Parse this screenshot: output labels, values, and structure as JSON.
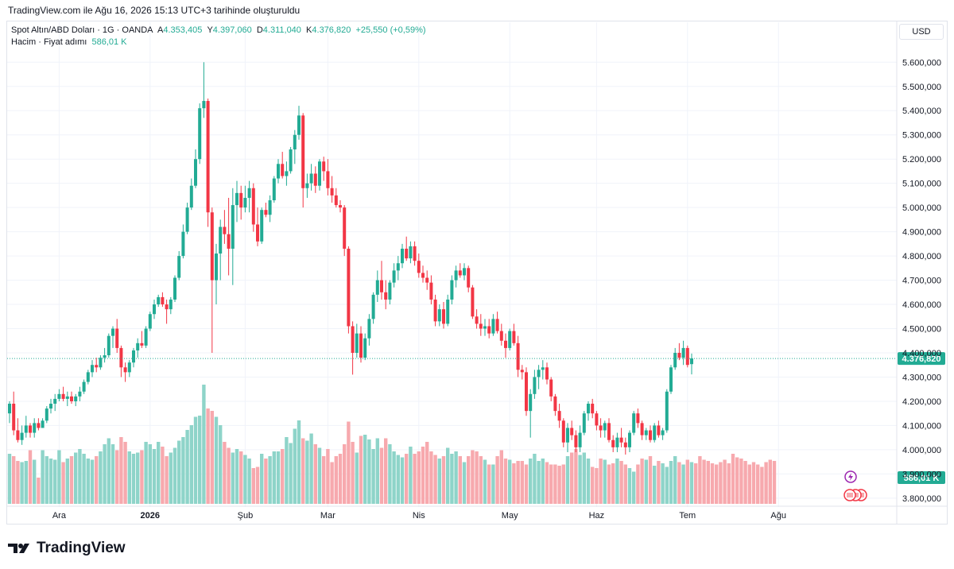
{
  "header": {
    "caption": "TradingView.com ile Ağu 16, 2026 15:13 UTC+3 tarihinde oluşturuldu",
    "symbol": "Spot Altın/ABD Doları · 1G · OANDA",
    "open_label": "A",
    "open": "4.353,405",
    "high_label": "Y",
    "high": "4.397,060",
    "low_label": "D",
    "low": "4.311,040",
    "close_label": "K",
    "close": "4.376,820",
    "change": "+25,550 (+0,59%)",
    "volume_label": "Hacim · Fiyat adımı",
    "volume_value": "586,01 K"
  },
  "currency": "USD",
  "footer_brand": "TradingView",
  "colors": {
    "up": "#22ab94",
    "down": "#f23645",
    "up_vol": "#8ed4c9",
    "down_vol": "#f7a9ae"
  },
  "chart_data": {
    "type": "candlestick",
    "series_name": "Spot Altın/ABD Doları",
    "ylim": [
      3770000,
      5660000
    ],
    "y_ticks": [
      {
        "value": 5600000,
        "label": "5.600,000"
      },
      {
        "value": 5500000,
        "label": "5.500,000"
      },
      {
        "value": 5400000,
        "label": "5.400,000"
      },
      {
        "value": 5300000,
        "label": "5.300,000"
      },
      {
        "value": 5200000,
        "label": "5.200,000"
      },
      {
        "value": 5100000,
        "label": "5.100,000"
      },
      {
        "value": 5000000,
        "label": "5.000,000"
      },
      {
        "value": 4900000,
        "label": "4.900,000"
      },
      {
        "value": 4800000,
        "label": "4.800,000"
      },
      {
        "value": 4700000,
        "label": "4.700,000"
      },
      {
        "value": 4600000,
        "label": "4.600,000"
      },
      {
        "value": 4500000,
        "label": "4.500,000"
      },
      {
        "value": 4400000,
        "label": "4.400,000"
      },
      {
        "value": 4300000,
        "label": "4.300,000"
      },
      {
        "value": 4200000,
        "label": "4.200,000"
      },
      {
        "value": 4100000,
        "label": "4.100,000"
      },
      {
        "value": 4000000,
        "label": "4.000,000"
      },
      {
        "value": 3900000,
        "label": "3.900,000"
      },
      {
        "value": 3800000,
        "label": "3.800,000"
      }
    ],
    "x_ticks": [
      {
        "index": 12,
        "label": "Ara"
      },
      {
        "index": 34,
        "label": "2026"
      },
      {
        "index": 57,
        "label": "Şub"
      },
      {
        "index": 77,
        "label": "Mar"
      },
      {
        "index": 99,
        "label": "Nis"
      },
      {
        "index": 121,
        "label": "May"
      },
      {
        "index": 142,
        "label": "Haz"
      },
      {
        "index": 164,
        "label": "Tem"
      },
      {
        "index": 186,
        "label": "Ağu"
      }
    ],
    "last_price": {
      "value": 4376820,
      "label": "4.376,820"
    },
    "last_volume": {
      "label": "586,01 K"
    },
    "candles": [
      [
        4150000,
        4200000,
        4110000,
        4190000
      ],
      [
        4190000,
        4240000,
        4060000,
        4080000
      ],
      [
        4080000,
        4130000,
        4030000,
        4040000
      ],
      [
        4040000,
        4100000,
        4020000,
        4070000
      ],
      [
        4070000,
        4140000,
        4050000,
        4100000
      ],
      [
        4100000,
        4110000,
        4050000,
        4070000
      ],
      [
        4070000,
        4130000,
        4050000,
        4110000
      ],
      [
        4110000,
        4130000,
        4080000,
        4090000
      ],
      [
        4090000,
        4130000,
        4090000,
        4120000
      ],
      [
        4120000,
        4180000,
        4110000,
        4170000
      ],
      [
        4170000,
        4210000,
        4150000,
        4190000
      ],
      [
        4190000,
        4230000,
        4160000,
        4210000
      ],
      [
        4210000,
        4250000,
        4200000,
        4230000
      ],
      [
        4230000,
        4260000,
        4200000,
        4210000
      ],
      [
        4210000,
        4240000,
        4180000,
        4220000
      ],
      [
        4220000,
        4240000,
        4190000,
        4200000
      ],
      [
        4200000,
        4230000,
        4180000,
        4220000
      ],
      [
        4220000,
        4260000,
        4200000,
        4240000
      ],
      [
        4240000,
        4290000,
        4230000,
        4280000
      ],
      [
        4280000,
        4330000,
        4270000,
        4320000
      ],
      [
        4320000,
        4370000,
        4300000,
        4350000
      ],
      [
        4350000,
        4380000,
        4320000,
        4340000
      ],
      [
        4340000,
        4390000,
        4330000,
        4380000
      ],
      [
        4380000,
        4420000,
        4360000,
        4390000
      ],
      [
        4390000,
        4480000,
        4380000,
        4470000
      ],
      [
        4470000,
        4510000,
        4420000,
        4500000
      ],
      [
        4500000,
        4540000,
        4400000,
        4420000
      ],
      [
        4420000,
        4430000,
        4300000,
        4340000
      ],
      [
        4340000,
        4360000,
        4280000,
        4320000
      ],
      [
        4320000,
        4370000,
        4300000,
        4360000
      ],
      [
        4360000,
        4420000,
        4340000,
        4410000
      ],
      [
        4410000,
        4460000,
        4380000,
        4440000
      ],
      [
        4440000,
        4490000,
        4420000,
        4430000
      ],
      [
        4430000,
        4510000,
        4420000,
        4500000
      ],
      [
        4500000,
        4570000,
        4490000,
        4560000
      ],
      [
        4560000,
        4620000,
        4540000,
        4600000
      ],
      [
        4600000,
        4640000,
        4590000,
        4630000
      ],
      [
        4630000,
        4650000,
        4590000,
        4600000
      ],
      [
        4600000,
        4620000,
        4520000,
        4580000
      ],
      [
        4580000,
        4630000,
        4560000,
        4620000
      ],
      [
        4620000,
        4720000,
        4610000,
        4710000
      ],
      [
        4710000,
        4820000,
        4700000,
        4800000
      ],
      [
        4800000,
        4930000,
        4790000,
        4900000
      ],
      [
        4900000,
        5020000,
        4890000,
        5000000
      ],
      [
        5000000,
        5120000,
        4990000,
        5090000
      ],
      [
        5090000,
        5240000,
        5080000,
        5200000
      ],
      [
        5200000,
        5430000,
        5180000,
        5410000
      ],
      [
        5410000,
        5600000,
        5370000,
        5440000
      ],
      [
        5440000,
        5450000,
        4920000,
        4980000
      ],
      [
        4980000,
        5000000,
        4400000,
        4700000
      ],
      [
        4700000,
        4850000,
        4600000,
        4810000
      ],
      [
        4810000,
        4950000,
        4700000,
        4920000
      ],
      [
        4920000,
        4990000,
        4850000,
        4890000
      ],
      [
        4890000,
        5040000,
        4720000,
        4830000
      ],
      [
        4830000,
        5080000,
        4680000,
        5010000
      ],
      [
        5010000,
        5110000,
        4940000,
        5060000
      ],
      [
        5060000,
        5090000,
        4950000,
        5000000
      ],
      [
        5000000,
        5090000,
        4980000,
        5040000
      ],
      [
        5040000,
        5110000,
        4980000,
        5080000
      ],
      [
        5080000,
        5100000,
        4900000,
        4930000
      ],
      [
        4930000,
        5000000,
        4840000,
        4860000
      ],
      [
        4860000,
        5000000,
        4850000,
        4990000
      ],
      [
        4990000,
        5020000,
        4960000,
        4970000
      ],
      [
        4970000,
        5050000,
        4940000,
        5030000
      ],
      [
        5030000,
        5130000,
        5020000,
        5120000
      ],
      [
        5120000,
        5200000,
        5100000,
        5180000
      ],
      [
        5180000,
        5230000,
        5120000,
        5130000
      ],
      [
        5130000,
        5190000,
        5090000,
        5150000
      ],
      [
        5150000,
        5250000,
        5140000,
        5240000
      ],
      [
        5240000,
        5320000,
        5180000,
        5300000
      ],
      [
        5300000,
        5420000,
        5280000,
        5380000
      ],
      [
        5380000,
        5390000,
        5000000,
        5080000
      ],
      [
        5080000,
        5140000,
        5040000,
        5100000
      ],
      [
        5100000,
        5180000,
        5070000,
        5140000
      ],
      [
        5140000,
        5170000,
        5060000,
        5090000
      ],
      [
        5090000,
        5200000,
        5070000,
        5190000
      ],
      [
        5190000,
        5210000,
        5110000,
        5150000
      ],
      [
        5150000,
        5200000,
        5050000,
        5080000
      ],
      [
        5080000,
        5130000,
        5020000,
        5050000
      ],
      [
        5050000,
        5080000,
        5000000,
        5010000
      ],
      [
        5010000,
        5030000,
        4980000,
        5000000
      ],
      [
        5000000,
        5010000,
        4800000,
        4830000
      ],
      [
        4830000,
        4840000,
        4480000,
        4510000
      ],
      [
        4510000,
        4530000,
        4310000,
        4400000
      ],
      [
        4400000,
        4520000,
        4380000,
        4480000
      ],
      [
        4480000,
        4510000,
        4360000,
        4380000
      ],
      [
        4380000,
        4480000,
        4370000,
        4460000
      ],
      [
        4460000,
        4560000,
        4430000,
        4540000
      ],
      [
        4540000,
        4650000,
        4520000,
        4640000
      ],
      [
        4640000,
        4740000,
        4610000,
        4700000
      ],
      [
        4700000,
        4780000,
        4620000,
        4650000
      ],
      [
        4650000,
        4700000,
        4580000,
        4620000
      ],
      [
        4620000,
        4700000,
        4600000,
        4690000
      ],
      [
        4690000,
        4770000,
        4670000,
        4740000
      ],
      [
        4740000,
        4800000,
        4700000,
        4770000
      ],
      [
        4770000,
        4850000,
        4750000,
        4830000
      ],
      [
        4830000,
        4880000,
        4780000,
        4790000
      ],
      [
        4790000,
        4860000,
        4770000,
        4840000
      ],
      [
        4840000,
        4860000,
        4760000,
        4780000
      ],
      [
        4780000,
        4810000,
        4710000,
        4730000
      ],
      [
        4730000,
        4760000,
        4690000,
        4710000
      ],
      [
        4710000,
        4740000,
        4660000,
        4690000
      ],
      [
        4690000,
        4720000,
        4600000,
        4620000
      ],
      [
        4620000,
        4640000,
        4510000,
        4530000
      ],
      [
        4530000,
        4600000,
        4510000,
        4580000
      ],
      [
        4580000,
        4610000,
        4500000,
        4520000
      ],
      [
        4520000,
        4640000,
        4510000,
        4620000
      ],
      [
        4620000,
        4720000,
        4600000,
        4700000
      ],
      [
        4700000,
        4760000,
        4670000,
        4740000
      ],
      [
        4740000,
        4770000,
        4710000,
        4720000
      ],
      [
        4720000,
        4770000,
        4700000,
        4750000
      ],
      [
        4750000,
        4760000,
        4650000,
        4670000
      ],
      [
        4670000,
        4680000,
        4540000,
        4550000
      ],
      [
        4550000,
        4580000,
        4500000,
        4520000
      ],
      [
        4520000,
        4560000,
        4470000,
        4500000
      ],
      [
        4500000,
        4540000,
        4470000,
        4510000
      ],
      [
        4510000,
        4540000,
        4460000,
        4480000
      ],
      [
        4480000,
        4560000,
        4470000,
        4540000
      ],
      [
        4540000,
        4570000,
        4480000,
        4490000
      ],
      [
        4490000,
        4520000,
        4430000,
        4450000
      ],
      [
        4450000,
        4480000,
        4380000,
        4420000
      ],
      [
        4420000,
        4500000,
        4410000,
        4490000
      ],
      [
        4490000,
        4520000,
        4430000,
        4440000
      ],
      [
        4440000,
        4470000,
        4300000,
        4330000
      ],
      [
        4330000,
        4350000,
        4290000,
        4320000
      ],
      [
        4320000,
        4340000,
        4140000,
        4160000
      ],
      [
        4160000,
        4250000,
        4050000,
        4230000
      ],
      [
        4230000,
        4330000,
        4210000,
        4300000
      ],
      [
        4300000,
        4350000,
        4250000,
        4330000
      ],
      [
        4330000,
        4370000,
        4290000,
        4340000
      ],
      [
        4340000,
        4360000,
        4270000,
        4290000
      ],
      [
        4290000,
        4300000,
        4200000,
        4220000
      ],
      [
        4220000,
        4230000,
        4140000,
        4160000
      ],
      [
        4160000,
        4190000,
        4090000,
        4120000
      ],
      [
        4120000,
        4130000,
        4010000,
        4030000
      ],
      [
        4030000,
        4110000,
        3990000,
        4090000
      ],
      [
        4090000,
        4120000,
        4040000,
        4060000
      ],
      [
        4060000,
        4080000,
        3990000,
        4010000
      ],
      [
        4010000,
        4100000,
        3990000,
        4070000
      ],
      [
        4070000,
        4160000,
        4060000,
        4150000
      ],
      [
        4150000,
        4200000,
        4120000,
        4190000
      ],
      [
        4190000,
        4210000,
        4130000,
        4150000
      ],
      [
        4150000,
        4160000,
        4080000,
        4100000
      ],
      [
        4100000,
        4130000,
        4050000,
        4080000
      ],
      [
        4080000,
        4120000,
        4050000,
        4110000
      ],
      [
        4110000,
        4130000,
        4030000,
        4040000
      ],
      [
        4040000,
        4060000,
        3990000,
        4010000
      ],
      [
        4010000,
        4070000,
        3990000,
        4050000
      ],
      [
        4050000,
        4090000,
        4010000,
        4030000
      ],
      [
        4030000,
        4050000,
        3980000,
        4010000
      ],
      [
        4010000,
        4080000,
        3990000,
        4070000
      ],
      [
        4070000,
        4160000,
        4060000,
        4150000
      ],
      [
        4150000,
        4170000,
        4090000,
        4110000
      ],
      [
        4110000,
        4120000,
        4040000,
        4060000
      ],
      [
        4060000,
        4090000,
        4040000,
        4080000
      ],
      [
        4080000,
        4100000,
        4030000,
        4040000
      ],
      [
        4040000,
        4110000,
        4030000,
        4100000
      ],
      [
        4100000,
        4120000,
        4050000,
        4060000
      ],
      [
        4060000,
        4090000,
        4040000,
        4080000
      ],
      [
        4080000,
        4250000,
        4070000,
        4240000
      ],
      [
        4240000,
        4350000,
        4230000,
        4340000
      ],
      [
        4340000,
        4420000,
        4330000,
        4400000
      ],
      [
        4400000,
        4440000,
        4370000,
        4380000
      ],
      [
        4380000,
        4450000,
        4350000,
        4420000
      ],
      [
        4420000,
        4430000,
        4340000,
        4350000
      ],
      [
        4353405,
        4397060,
        4311040,
        4376820
      ]
    ],
    "volumes": [
      0.42,
      0.4,
      0.36,
      0.35,
      0.36,
      0.45,
      0.37,
      0.22,
      0.45,
      0.4,
      0.38,
      0.37,
      0.45,
      0.35,
      0.38,
      0.4,
      0.43,
      0.46,
      0.42,
      0.38,
      0.37,
      0.4,
      0.44,
      0.5,
      0.55,
      0.5,
      0.45,
      0.56,
      0.52,
      0.44,
      0.42,
      0.43,
      0.45,
      0.52,
      0.5,
      0.46,
      0.52,
      0.48,
      0.4,
      0.43,
      0.47,
      0.53,
      0.56,
      0.62,
      0.66,
      0.73,
      0.74,
      1.0,
      0.8,
      0.78,
      0.73,
      0.66,
      0.52,
      0.47,
      0.43,
      0.46,
      0.44,
      0.41,
      0.38,
      0.3,
      0.31,
      0.42,
      0.38,
      0.4,
      0.44,
      0.44,
      0.46,
      0.56,
      0.51,
      0.63,
      0.7,
      0.55,
      0.53,
      0.59,
      0.5,
      0.47,
      0.4,
      0.46,
      0.35,
      0.4,
      0.42,
      0.5,
      0.69,
      0.52,
      0.43,
      0.57,
      0.58,
      0.54,
      0.46,
      0.55,
      0.47,
      0.55,
      0.5,
      0.44,
      0.41,
      0.39,
      0.42,
      0.48,
      0.42,
      0.44,
      0.48,
      0.52,
      0.44,
      0.41,
      0.38,
      0.4,
      0.47,
      0.42,
      0.44,
      0.4,
      0.35,
      0.4,
      0.45,
      0.44,
      0.4,
      0.37,
      0.33,
      0.33,
      0.4,
      0.45,
      0.38,
      0.37,
      0.34,
      0.36,
      0.36,
      0.33,
      0.38,
      0.42,
      0.36,
      0.38,
      0.35,
      0.33,
      0.33,
      0.32,
      0.33,
      0.4,
      0.43,
      0.46,
      0.41,
      0.43,
      0.38,
      0.31,
      0.3,
      0.38,
      0.37,
      0.33,
      0.34,
      0.38,
      0.36,
      0.33,
      0.3,
      0.27,
      0.33,
      0.38,
      0.37,
      0.4,
      0.32,
      0.36,
      0.34,
      0.31,
      0.36,
      0.4,
      0.35,
      0.33,
      0.37,
      0.35,
      0.34,
      0.4,
      0.37,
      0.36,
      0.34,
      0.33,
      0.35,
      0.37,
      0.34,
      0.42,
      0.39,
      0.38,
      0.36,
      0.33,
      0.35,
      0.33,
      0.31,
      0.35,
      0.37,
      0.36
    ]
  }
}
